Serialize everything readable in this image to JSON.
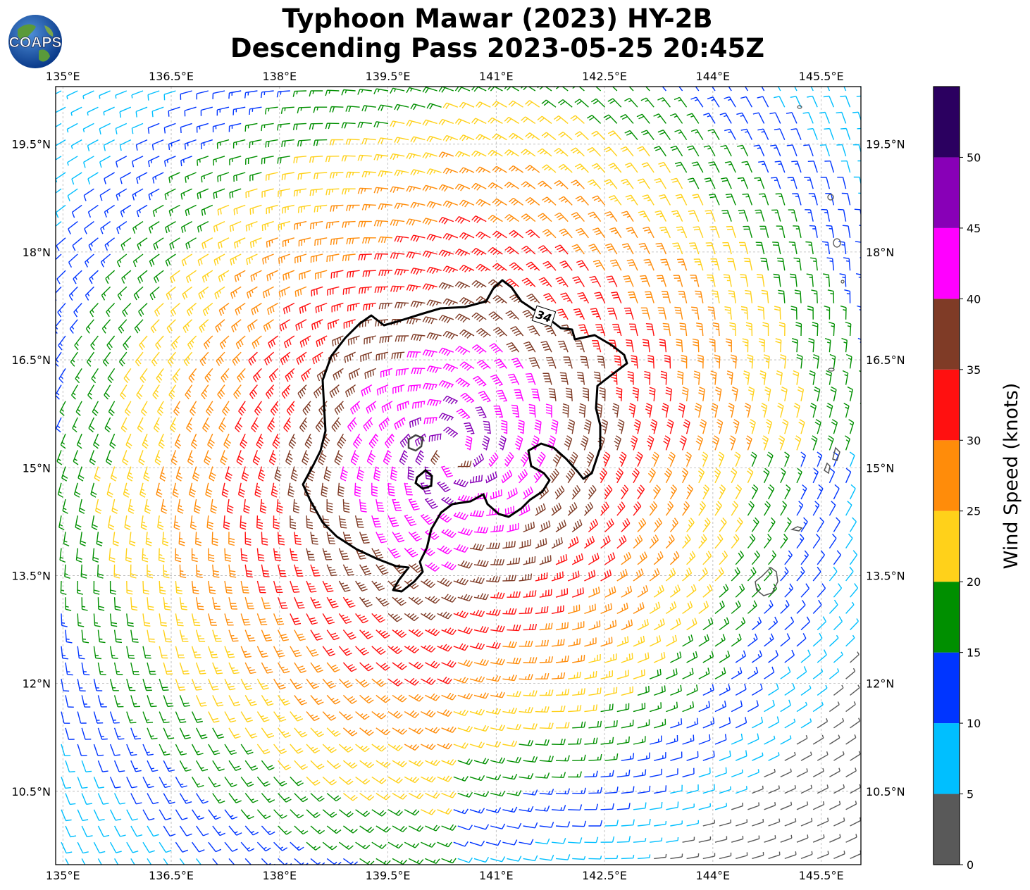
{
  "header": {
    "title_line1": "Typhoon Mawar (2023) HY-2B",
    "title_line2": "Descending Pass 2023-05-25 20:45Z",
    "logo_text": "COAPS"
  },
  "map": {
    "lon_ticks": [
      "135°E",
      "136.5°E",
      "138°E",
      "139.5°E",
      "141°E",
      "142.5°E",
      "144°E",
      "145.5°E"
    ],
    "lon_values": [
      135,
      136.5,
      138,
      139.5,
      141,
      142.5,
      144,
      145.5
    ],
    "lat_ticks": [
      "19.5°N",
      "18°N",
      "16.5°N",
      "15°N",
      "13.5°N",
      "12°N",
      "10.5°N"
    ],
    "lat_values": [
      19.5,
      18,
      16.5,
      15,
      13.5,
      12,
      10.5
    ],
    "lon_range": [
      134.9,
      146.05
    ],
    "lat_range": [
      9.48,
      20.3
    ],
    "storm_center": {
      "lon": 140.4,
      "lat": 15.2
    },
    "contour_label": "34",
    "grid": "dashed"
  },
  "colorbar": {
    "label": "Wind Speed (knots)",
    "ticks": [
      "0",
      "5",
      "10",
      "15",
      "20",
      "25",
      "30",
      "35",
      "40",
      "45",
      "50"
    ],
    "bins": [
      {
        "min": 0,
        "max": 5,
        "color": "#595959"
      },
      {
        "min": 5,
        "max": 10,
        "color": "#00bfff"
      },
      {
        "min": 10,
        "max": 15,
        "color": "#0035ff"
      },
      {
        "min": 15,
        "max": 20,
        "color": "#008f00"
      },
      {
        "min": 20,
        "max": 25,
        "color": "#ffd11a"
      },
      {
        "min": 25,
        "max": 30,
        "color": "#ff8c0a"
      },
      {
        "min": 30,
        "max": 35,
        "color": "#ff1010"
      },
      {
        "min": 35,
        "max": 40,
        "color": "#7f3b26"
      },
      {
        "min": 40,
        "max": 45,
        "color": "#ff00ff"
      },
      {
        "min": 45,
        "max": 50,
        "color": "#8800b7"
      },
      {
        "min": 50,
        "max": 55,
        "color": "#2b0060"
      }
    ]
  }
}
